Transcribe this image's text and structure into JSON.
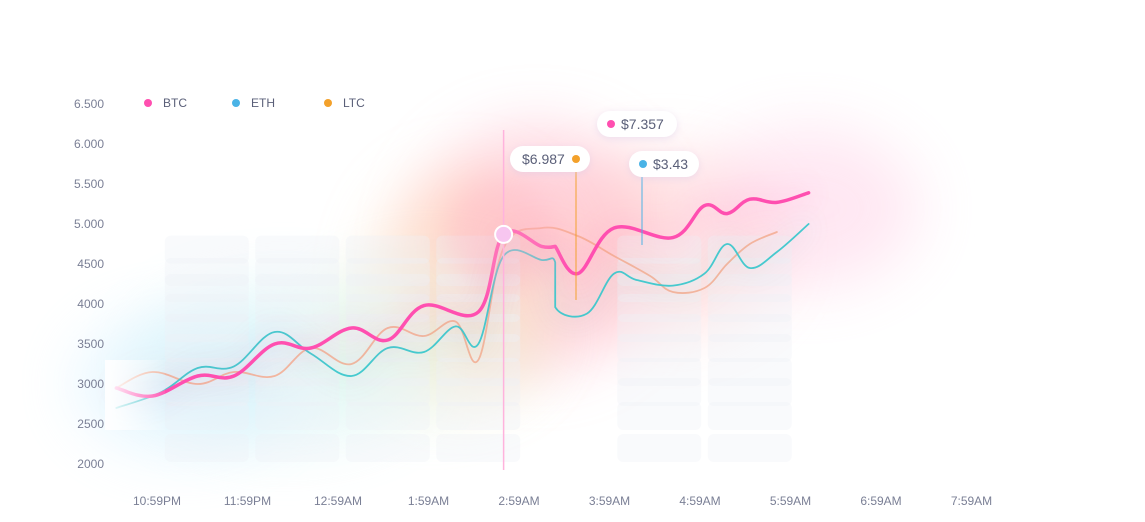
{
  "colors": {
    "btc": "#ff4fb0",
    "eth": "#3cc7cc",
    "ltc": "#f5a78a",
    "eth_dot": "#4ab3e6",
    "ltc_dot": "#f3a12b",
    "axis_text": "#7a7f95"
  },
  "legend": [
    {
      "label": "BTC",
      "color": "#ff4fb0"
    },
    {
      "label": "ETH",
      "color": "#4ab3e6"
    },
    {
      "label": "LTC",
      "color": "#f3a12b"
    }
  ],
  "tooltips": {
    "btc": {
      "text": "$7.357",
      "color": "#ff4fb0"
    },
    "ltc": {
      "text": "$6.987",
      "color": "#f3a12b"
    },
    "eth": {
      "text": "$3.43",
      "color": "#4ab3e6"
    }
  },
  "chart_data": {
    "type": "line",
    "title": "",
    "xlabel": "",
    "ylabel": "",
    "y_ticks": [
      "6.500",
      "6.000",
      "5.500",
      "5.000",
      "4500",
      "4000",
      "3500",
      "3000",
      "2500",
      "2000"
    ],
    "y_tick_values": [
      6500,
      6000,
      5500,
      5000,
      4500,
      4000,
      3500,
      3000,
      2500,
      2000
    ],
    "ylim": [
      2000,
      6500
    ],
    "categories": [
      "10:59PM",
      "11:59PM",
      "12:59AM",
      "1:59AM",
      "2:59AM",
      "3:59AM",
      "4:59AM",
      "5:59AM",
      "6:59AM",
      "7:59AM"
    ],
    "xlim": [
      -0.45,
      9.7
    ],
    "legend_position": "top-left",
    "grid": false,
    "highlight": {
      "x": 3.83,
      "y": 4870
    },
    "series": [
      {
        "name": "BTC",
        "x": [
          -0.45,
          -0.05,
          0.45,
          0.85,
          1.3,
          1.7,
          2.15,
          2.55,
          2.95,
          3.55,
          3.83,
          4.25,
          4.4,
          4.4,
          4.65,
          5.05,
          5.7,
          6.05,
          6.3,
          6.55,
          6.85,
          7.2
        ],
        "y": [
          2950,
          2850,
          3100,
          3100,
          3500,
          3450,
          3700,
          3550,
          3980,
          3900,
          4870,
          4720,
          4720,
          4720,
          4380,
          4950,
          4830,
          5230,
          5130,
          5310,
          5270,
          5390
        ]
      },
      {
        "name": "ETH",
        "x": [
          -0.45,
          0.05,
          0.45,
          0.85,
          1.3,
          1.7,
          2.15,
          2.55,
          2.95,
          3.3,
          3.55,
          3.83,
          4.25,
          4.4,
          4.4,
          4.75,
          5.05,
          5.3,
          5.7,
          6.05,
          6.3,
          6.55,
          6.85,
          7.2
        ],
        "y": [
          2700,
          2900,
          3200,
          3220,
          3650,
          3380,
          3100,
          3450,
          3400,
          3720,
          3500,
          4600,
          4550,
          4520,
          3960,
          3880,
          4380,
          4300,
          4230,
          4380,
          4750,
          4450,
          4650,
          5000
        ]
      },
      {
        "name": "LTC",
        "x": [
          -0.45,
          -0.05,
          0.45,
          0.85,
          1.3,
          1.7,
          2.15,
          2.55,
          2.95,
          3.3,
          3.55,
          3.83,
          4.25,
          4.65,
          5.05,
          5.45,
          5.7,
          6.05,
          6.3,
          6.55,
          6.85
        ],
        "y": [
          2950,
          3150,
          3000,
          3150,
          3100,
          3450,
          3250,
          3700,
          3600,
          3780,
          3300,
          4700,
          4950,
          4850,
          4600,
          4350,
          4150,
          4200,
          4500,
          4750,
          4900
        ]
      }
    ]
  }
}
